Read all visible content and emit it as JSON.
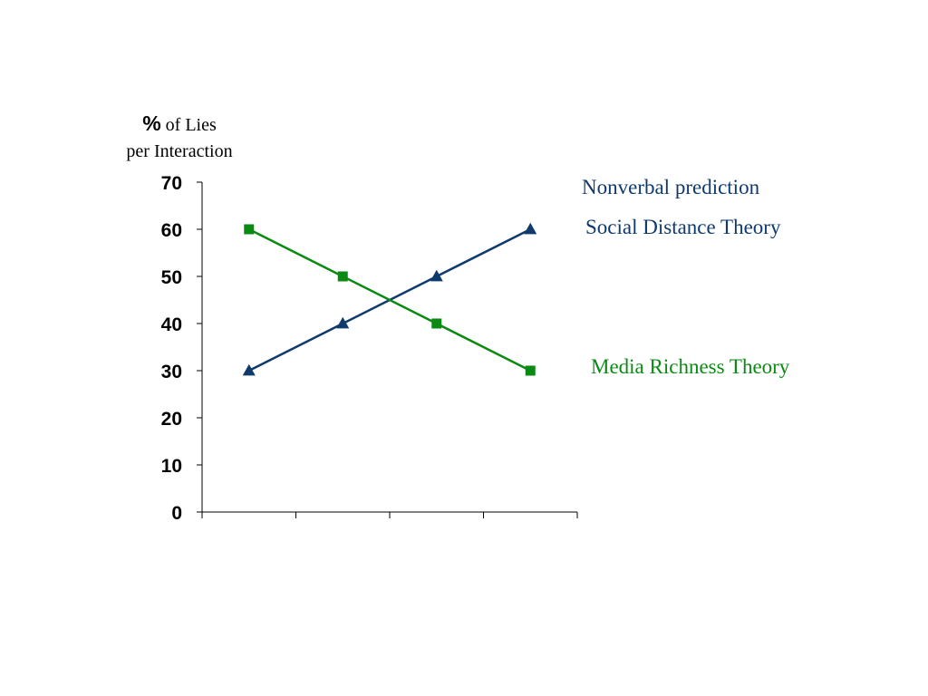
{
  "chart_data": {
    "type": "line",
    "title": "",
    "ylabel_prefix": "%",
    "ylabel_line1": "of Lies",
    "ylabel_line2": "per Interaction",
    "xlabel": "",
    "ylim": [
      0,
      70
    ],
    "yticks": [
      "0",
      "10",
      "20",
      "30",
      "40",
      "50",
      "60",
      "70"
    ],
    "x": [
      1,
      2,
      3,
      4
    ],
    "series": [
      {
        "name": "Social Distance Theory",
        "values": [
          30,
          40,
          50,
          60
        ],
        "color": "#0f3a6e",
        "marker": "triangle"
      },
      {
        "name": "Media Richness Theory",
        "values": [
          60,
          50,
          40,
          30
        ],
        "color": "#0a8a12",
        "marker": "square"
      }
    ],
    "annotations": {
      "nonverbal": {
        "text": "Nonverbal prediction",
        "color": "#0f3a6e"
      },
      "social_distance": {
        "text": "Social Distance Theory",
        "color": "#0f3a6e"
      },
      "media_richness": {
        "text": "Media Richness Theory",
        "color": "#0a8a12"
      }
    },
    "grid": false,
    "legend": "none"
  }
}
